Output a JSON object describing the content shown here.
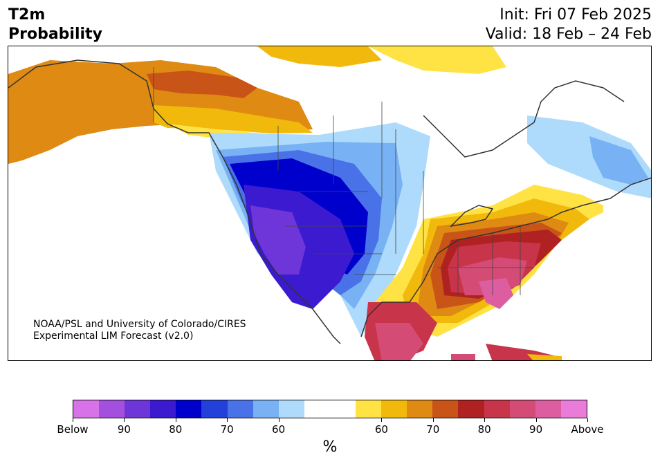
{
  "header": {
    "title_line1": "T2m",
    "title_line2": "Probability",
    "init": "Init: Fri 07 Feb 2025",
    "valid": "Valid: 18 Feb – 24 Feb"
  },
  "credit": {
    "line1": "NOAA/PSL and University of Colorado/CIRES",
    "line2": "Experimental LIM Forecast (v2.0)"
  },
  "colorbar": {
    "unit": "%",
    "colors": [
      "#d872e8",
      "#a450de",
      "#6e35d8",
      "#3b1ad0",
      "#0000cc",
      "#2340d8",
      "#4a72e8",
      "#78b2f5",
      "#aedbfb",
      "#ffffff",
      "#ffffff",
      "#ffe345",
      "#f2b90d",
      "#de8a13",
      "#c95418",
      "#b02222",
      "#c83449",
      "#d44c75",
      "#dc5ea0",
      "#e87cd8"
    ],
    "ticks": [
      {
        "label": "Below",
        "index": 0
      },
      {
        "label": "90",
        "index": 2
      },
      {
        "label": "80",
        "index": 4
      },
      {
        "label": "70",
        "index": 6
      },
      {
        "label": "60",
        "index": 8
      },
      {
        "label": "60",
        "index": 12
      },
      {
        "label": "70",
        "index": 14
      },
      {
        "label": "80",
        "index": 16
      },
      {
        "label": "90",
        "index": 18
      },
      {
        "label": "Above",
        "index": 20
      }
    ]
  },
  "map": {
    "regions": [
      {
        "name": "alaska-above-warm",
        "color": "#de8a13"
      },
      {
        "name": "northwest-canada-warm",
        "color": "#c95418"
      },
      {
        "name": "arctic-yellow",
        "color": "#ffe345"
      },
      {
        "name": "arctic-gold",
        "color": "#f2b90d"
      },
      {
        "name": "western-us-cold-light",
        "color": "#aedbfb"
      },
      {
        "name": "western-us-cold-mid",
        "color": "#78b2f5"
      },
      {
        "name": "western-us-cold",
        "color": "#4a72e8"
      },
      {
        "name": "rockies-cold-deep",
        "color": "#0000cc"
      },
      {
        "name": "great-basin-cold",
        "color": "#3b1ad0"
      },
      {
        "name": "california-cold",
        "color": "#6e35d8"
      },
      {
        "name": "eastern-us-warm-yellow",
        "color": "#ffe345"
      },
      {
        "name": "eastern-us-warm-gold",
        "color": "#f2b90d"
      },
      {
        "name": "eastern-us-warm-orange",
        "color": "#de8a13"
      },
      {
        "name": "eastern-us-warm-rust",
        "color": "#c95418"
      },
      {
        "name": "eastern-us-warm-red",
        "color": "#b02222"
      },
      {
        "name": "southeast-warm-crimson",
        "color": "#c83449"
      },
      {
        "name": "southeast-warm-pink",
        "color": "#d44c75"
      },
      {
        "name": "southeast-warm-magenta",
        "color": "#dc5ea0"
      },
      {
        "name": "labrador-cold-light",
        "color": "#aedbfb"
      },
      {
        "name": "labrador-cold-mid",
        "color": "#78b2f5"
      }
    ]
  }
}
